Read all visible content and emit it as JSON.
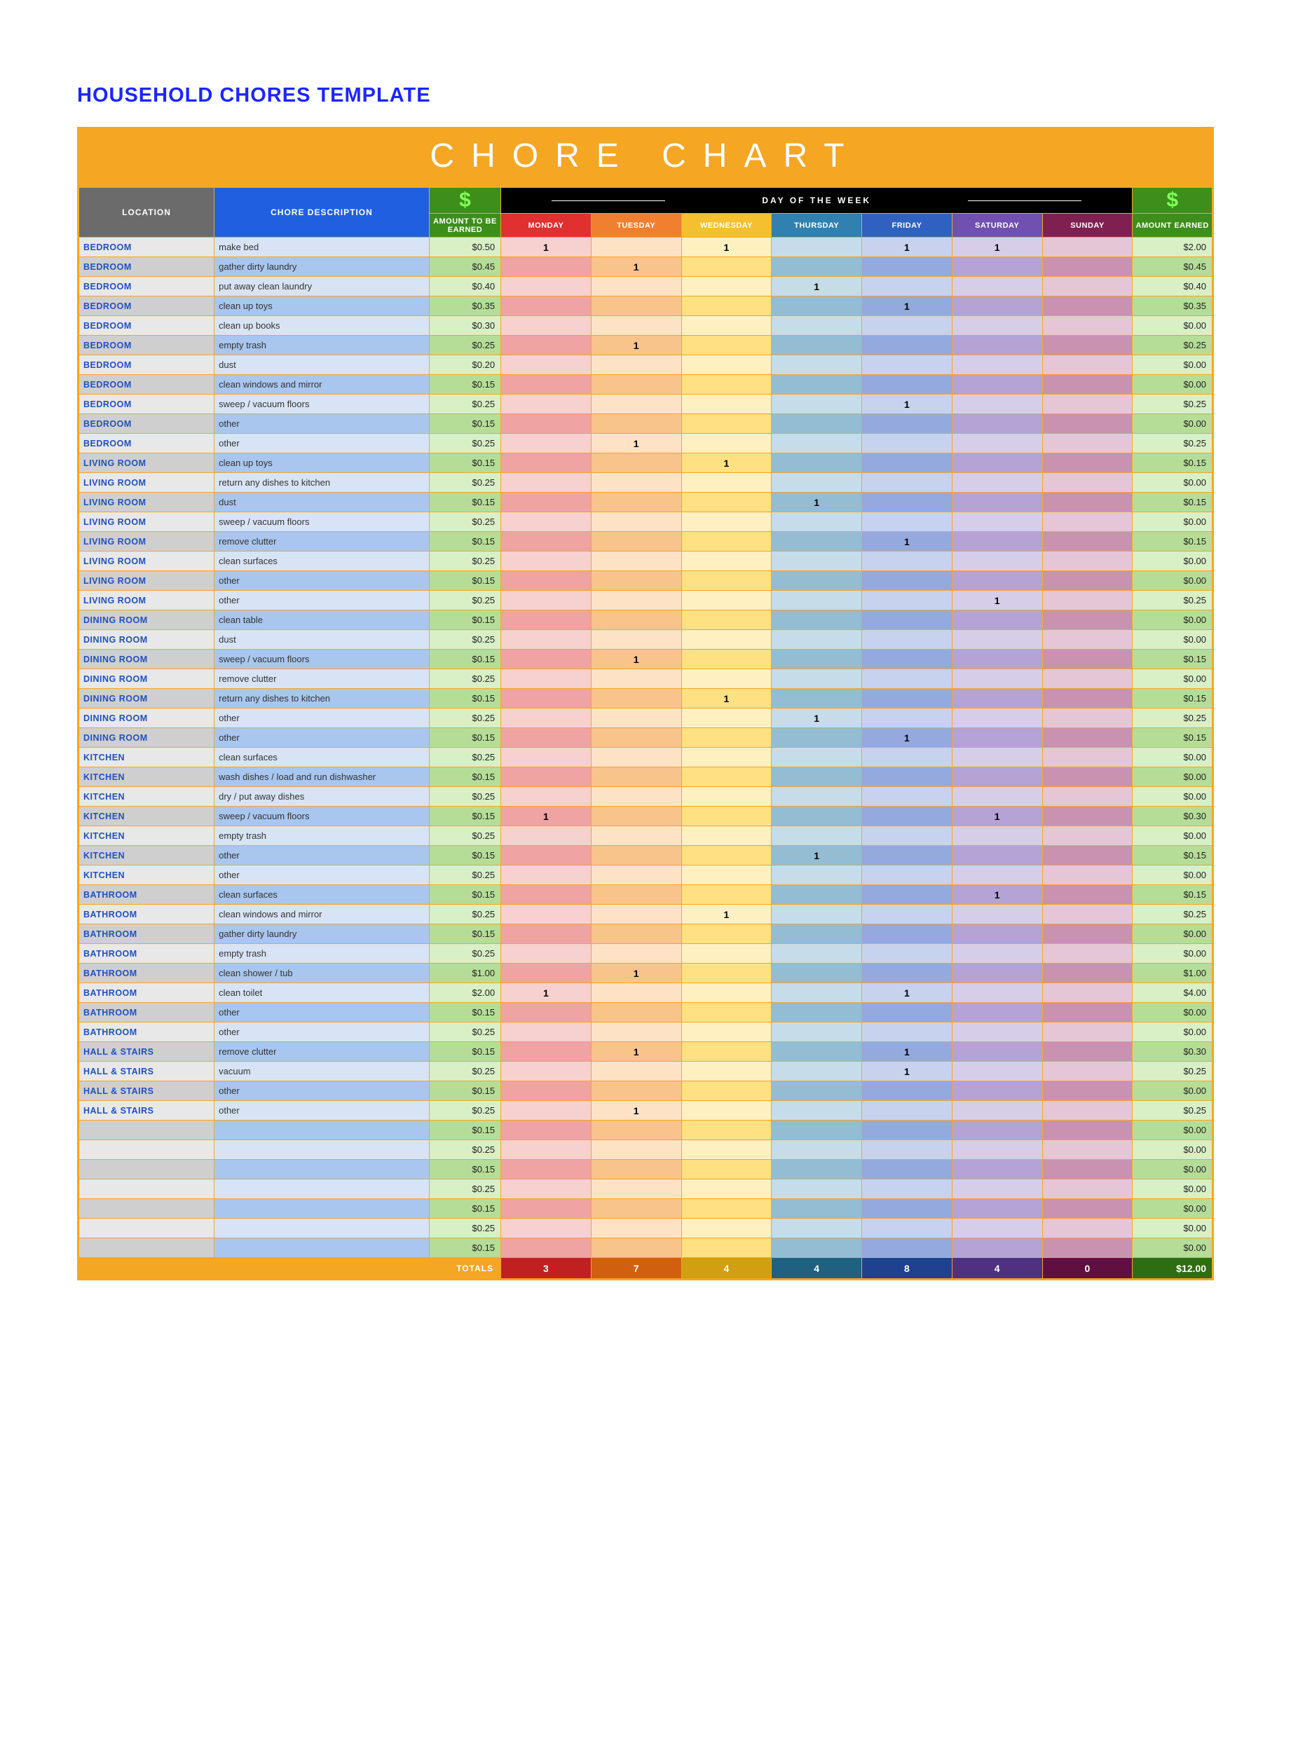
{
  "page_title": "HOUSEHOLD CHORES TEMPLATE",
  "banner": "CHORE CHART",
  "columns": {
    "location": "LOCATION",
    "description": "CHORE DESCRIPTION",
    "amount_to_be_earned": "AMOUNT TO BE EARNED",
    "day_of_the_week": "DAY OF THE WEEK",
    "amount_earned": "AMOUNT EARNED",
    "days": [
      "MONDAY",
      "TUESDAY",
      "WEDNESDAY",
      "THURSDAY",
      "FRIDAY",
      "SATURDAY",
      "SUNDAY"
    ]
  },
  "dollar_glyph": "$",
  "totals_label": "TOTALS",
  "currency_prefix": "$",
  "colors": {
    "accent_border": "#f5a623",
    "banner_bg": "#f5a623",
    "title_color": "#1b26ff",
    "hdr_loc_bg": "#6b6b6b",
    "hdr_desc_bg": "#2060e0",
    "hdr_dollar_bg": "#3e8e1b",
    "hdr_dollar_fg": "#7fff5a",
    "hdr_week_bg": "#000000",
    "day_headers": {
      "MONDAY": "#e03030",
      "TUESDAY": "#f08030",
      "WEDNESDAY": "#f5c030",
      "THURSDAY": "#3080b0",
      "FRIDAY": "#3060c0",
      "SATURDAY": "#7050b0",
      "SUNDAY": "#802050"
    },
    "totals": {
      "MONDAY": "#c02020",
      "TUESDAY": "#d06010",
      "WEDNESDAY": "#d0a010",
      "THURSDAY": "#206080",
      "FRIDAY": "#204090",
      "SATURDAY": "#503080",
      "SUNDAY": "#601040",
      "EARNED": "#2e6e10",
      "LABEL": "#f5a623"
    },
    "row_shades": {
      "loc": [
        "#e8e8e8",
        "#cfcfcf"
      ],
      "desc": [
        "#d8e4f5",
        "#a8c6ee"
      ],
      "amt": [
        "#d9efc6",
        "#b6dd97"
      ],
      "mon": [
        "#f7d0d0",
        "#efa3a3"
      ],
      "tue": [
        "#fde2c6",
        "#f9c38c"
      ],
      "wed": [
        "#fff0c2",
        "#ffe082"
      ],
      "thu": [
        "#c6dce8",
        "#94bdd4"
      ],
      "fri": [
        "#c6d2ee",
        "#94aade"
      ],
      "sat": [
        "#d6cee8",
        "#b4a3d4"
      ],
      "sun": [
        "#e4c6d6",
        "#c892b0"
      ],
      "earn": [
        "#d9efc6",
        "#b6dd97"
      ]
    }
  },
  "rows": [
    {
      "loc": "BEDROOM",
      "desc": "make bed",
      "amt": 0.5,
      "days": [
        "1",
        "",
        "1",
        "",
        "1",
        "1",
        ""
      ],
      "earned": 2.0
    },
    {
      "loc": "BEDROOM",
      "desc": "gather dirty laundry",
      "amt": 0.45,
      "days": [
        "",
        "1",
        "",
        "",
        "",
        "",
        ""
      ],
      "earned": 0.45
    },
    {
      "loc": "BEDROOM",
      "desc": "put away clean laundry",
      "amt": 0.4,
      "days": [
        "",
        "",
        "",
        "1",
        "",
        "",
        ""
      ],
      "earned": 0.4
    },
    {
      "loc": "BEDROOM",
      "desc": "clean up toys",
      "amt": 0.35,
      "days": [
        "",
        "",
        "",
        "",
        "1",
        "",
        ""
      ],
      "earned": 0.35
    },
    {
      "loc": "BEDROOM",
      "desc": "clean up books",
      "amt": 0.3,
      "days": [
        "",
        "",
        "",
        "",
        "",
        "",
        ""
      ],
      "earned": 0.0
    },
    {
      "loc": "BEDROOM",
      "desc": "empty trash",
      "amt": 0.25,
      "days": [
        "",
        "1",
        "",
        "",
        "",
        "",
        ""
      ],
      "earned": 0.25
    },
    {
      "loc": "BEDROOM",
      "desc": "dust",
      "amt": 0.2,
      "days": [
        "",
        "",
        "",
        "",
        "",
        "",
        ""
      ],
      "earned": 0.0
    },
    {
      "loc": "BEDROOM",
      "desc": "clean windows and mirror",
      "amt": 0.15,
      "days": [
        "",
        "",
        "",
        "",
        "",
        "",
        ""
      ],
      "earned": 0.0
    },
    {
      "loc": "BEDROOM",
      "desc": "sweep / vacuum floors",
      "amt": 0.25,
      "days": [
        "",
        "",
        "",
        "",
        "1",
        "",
        ""
      ],
      "earned": 0.25
    },
    {
      "loc": "BEDROOM",
      "desc": "other",
      "amt": 0.15,
      "days": [
        "",
        "",
        "",
        "",
        "",
        "",
        ""
      ],
      "earned": 0.0
    },
    {
      "loc": "BEDROOM",
      "desc": "other",
      "amt": 0.25,
      "days": [
        "",
        "1",
        "",
        "",
        "",
        "",
        ""
      ],
      "earned": 0.25
    },
    {
      "loc": "LIVING ROOM",
      "desc": "clean up toys",
      "amt": 0.15,
      "days": [
        "",
        "",
        "1",
        "",
        "",
        "",
        ""
      ],
      "earned": 0.15
    },
    {
      "loc": "LIVING ROOM",
      "desc": "return any dishes to kitchen",
      "amt": 0.25,
      "days": [
        "",
        "",
        "",
        "",
        "",
        "",
        ""
      ],
      "earned": 0.0
    },
    {
      "loc": "LIVING ROOM",
      "desc": "dust",
      "amt": 0.15,
      "days": [
        "",
        "",
        "",
        "1",
        "",
        "",
        ""
      ],
      "earned": 0.15
    },
    {
      "loc": "LIVING ROOM",
      "desc": "sweep / vacuum floors",
      "amt": 0.25,
      "days": [
        "",
        "",
        "",
        "",
        "",
        "",
        ""
      ],
      "earned": 0.0
    },
    {
      "loc": "LIVING ROOM",
      "desc": "remove clutter",
      "amt": 0.15,
      "days": [
        "",
        "",
        "",
        "",
        "1",
        "",
        ""
      ],
      "earned": 0.15
    },
    {
      "loc": "LIVING ROOM",
      "desc": "clean surfaces",
      "amt": 0.25,
      "days": [
        "",
        "",
        "",
        "",
        "",
        "",
        ""
      ],
      "earned": 0.0
    },
    {
      "loc": "LIVING ROOM",
      "desc": "other",
      "amt": 0.15,
      "days": [
        "",
        "",
        "",
        "",
        "",
        "",
        ""
      ],
      "earned": 0.0
    },
    {
      "loc": "LIVING ROOM",
      "desc": "other",
      "amt": 0.25,
      "days": [
        "",
        "",
        "",
        "",
        "",
        "1",
        ""
      ],
      "earned": 0.25
    },
    {
      "loc": "DINING ROOM",
      "desc": "clean table",
      "amt": 0.15,
      "days": [
        "",
        "",
        "",
        "",
        "",
        "",
        ""
      ],
      "earned": 0.0
    },
    {
      "loc": "DINING ROOM",
      "desc": "dust",
      "amt": 0.25,
      "days": [
        "",
        "",
        "",
        "",
        "",
        "",
        ""
      ],
      "earned": 0.0
    },
    {
      "loc": "DINING ROOM",
      "desc": "sweep / vacuum floors",
      "amt": 0.15,
      "days": [
        "",
        "1",
        "",
        "",
        "",
        "",
        ""
      ],
      "earned": 0.15
    },
    {
      "loc": "DINING ROOM",
      "desc": "remove clutter",
      "amt": 0.25,
      "days": [
        "",
        "",
        "",
        "",
        "",
        "",
        ""
      ],
      "earned": 0.0
    },
    {
      "loc": "DINING ROOM",
      "desc": "return any dishes to kitchen",
      "amt": 0.15,
      "days": [
        "",
        "",
        "1",
        "",
        "",
        "",
        ""
      ],
      "earned": 0.15
    },
    {
      "loc": "DINING ROOM",
      "desc": "other",
      "amt": 0.25,
      "days": [
        "",
        "",
        "",
        "1",
        "",
        "",
        ""
      ],
      "earned": 0.25
    },
    {
      "loc": "DINING ROOM",
      "desc": "other",
      "amt": 0.15,
      "days": [
        "",
        "",
        "",
        "",
        "1",
        "",
        ""
      ],
      "earned": 0.15
    },
    {
      "loc": "KITCHEN",
      "desc": "clean surfaces",
      "amt": 0.25,
      "days": [
        "",
        "",
        "",
        "",
        "",
        "",
        ""
      ],
      "earned": 0.0
    },
    {
      "loc": "KITCHEN",
      "desc": "wash dishes / load and run dishwasher",
      "amt": 0.15,
      "days": [
        "",
        "",
        "",
        "",
        "",
        "",
        ""
      ],
      "earned": 0.0
    },
    {
      "loc": "KITCHEN",
      "desc": "dry / put away dishes",
      "amt": 0.25,
      "days": [
        "",
        "",
        "",
        "",
        "",
        "",
        ""
      ],
      "earned": 0.0
    },
    {
      "loc": "KITCHEN",
      "desc": "sweep / vacuum floors",
      "amt": 0.15,
      "days": [
        "1",
        "",
        "",
        "",
        "",
        "1",
        ""
      ],
      "earned": 0.3
    },
    {
      "loc": "KITCHEN",
      "desc": "empty trash",
      "amt": 0.25,
      "days": [
        "",
        "",
        "",
        "",
        "",
        "",
        ""
      ],
      "earned": 0.0
    },
    {
      "loc": "KITCHEN",
      "desc": "other",
      "amt": 0.15,
      "days": [
        "",
        "",
        "",
        "1",
        "",
        "",
        ""
      ],
      "earned": 0.15
    },
    {
      "loc": "KITCHEN",
      "desc": "other",
      "amt": 0.25,
      "days": [
        "",
        "",
        "",
        "",
        "",
        "",
        ""
      ],
      "earned": 0.0
    },
    {
      "loc": "BATHROOM",
      "desc": "clean surfaces",
      "amt": 0.15,
      "days": [
        "",
        "",
        "",
        "",
        "",
        "1",
        ""
      ],
      "earned": 0.15
    },
    {
      "loc": "BATHROOM",
      "desc": "clean windows and mirror",
      "amt": 0.25,
      "days": [
        "",
        "",
        "1",
        "",
        "",
        "",
        ""
      ],
      "earned": 0.25
    },
    {
      "loc": "BATHROOM",
      "desc": "gather dirty laundry",
      "amt": 0.15,
      "days": [
        "",
        "",
        "",
        "",
        "",
        "",
        ""
      ],
      "earned": 0.0
    },
    {
      "loc": "BATHROOM",
      "desc": "empty trash",
      "amt": 0.25,
      "days": [
        "",
        "",
        "",
        "",
        "",
        "",
        ""
      ],
      "earned": 0.0
    },
    {
      "loc": "BATHROOM",
      "desc": "clean shower / tub",
      "amt": 1.0,
      "days": [
        "",
        "1",
        "",
        "",
        "",
        "",
        ""
      ],
      "earned": 1.0
    },
    {
      "loc": "BATHROOM",
      "desc": "clean toilet",
      "amt": 2.0,
      "days": [
        "1",
        "",
        "",
        "",
        "1",
        "",
        ""
      ],
      "earned": 4.0
    },
    {
      "loc": "BATHROOM",
      "desc": "other",
      "amt": 0.15,
      "days": [
        "",
        "",
        "",
        "",
        "",
        "",
        ""
      ],
      "earned": 0.0
    },
    {
      "loc": "BATHROOM",
      "desc": "other",
      "amt": 0.25,
      "days": [
        "",
        "",
        "",
        "",
        "",
        "",
        ""
      ],
      "earned": 0.0
    },
    {
      "loc": "HALL & STAIRS",
      "desc": "remove clutter",
      "amt": 0.15,
      "days": [
        "",
        "1",
        "",
        "",
        "1",
        "",
        ""
      ],
      "earned": 0.3
    },
    {
      "loc": "HALL & STAIRS",
      "desc": "vacuum",
      "amt": 0.25,
      "days": [
        "",
        "",
        "",
        "",
        "1",
        "",
        ""
      ],
      "earned": 0.25
    },
    {
      "loc": "HALL & STAIRS",
      "desc": "other",
      "amt": 0.15,
      "days": [
        "",
        "",
        "",
        "",
        "",
        "",
        ""
      ],
      "earned": 0.0
    },
    {
      "loc": "HALL & STAIRS",
      "desc": "other",
      "amt": 0.25,
      "days": [
        "",
        "1",
        "",
        "",
        "",
        "",
        ""
      ],
      "earned": 0.25
    },
    {
      "loc": "",
      "desc": "",
      "amt": 0.15,
      "days": [
        "",
        "",
        "",
        "",
        "",
        "",
        ""
      ],
      "earned": 0.0
    },
    {
      "loc": "",
      "desc": "",
      "amt": 0.25,
      "days": [
        "",
        "",
        "",
        "",
        "",
        "",
        ""
      ],
      "earned": 0.0
    },
    {
      "loc": "",
      "desc": "",
      "amt": 0.15,
      "days": [
        "",
        "",
        "",
        "",
        "",
        "",
        ""
      ],
      "earned": 0.0
    },
    {
      "loc": "",
      "desc": "",
      "amt": 0.25,
      "days": [
        "",
        "",
        "",
        "",
        "",
        "",
        ""
      ],
      "earned": 0.0
    },
    {
      "loc": "",
      "desc": "",
      "amt": 0.15,
      "days": [
        "",
        "",
        "",
        "",
        "",
        "",
        ""
      ],
      "earned": 0.0
    },
    {
      "loc": "",
      "desc": "",
      "amt": 0.25,
      "days": [
        "",
        "",
        "",
        "",
        "",
        "",
        ""
      ],
      "earned": 0.0
    },
    {
      "loc": "",
      "desc": "",
      "amt": 0.15,
      "days": [
        "",
        "",
        "",
        "",
        "",
        "",
        ""
      ],
      "earned": 0.0
    }
  ],
  "totals": {
    "days": [
      3,
      7,
      4,
      4,
      8,
      4,
      0
    ],
    "earned": 12.0
  }
}
